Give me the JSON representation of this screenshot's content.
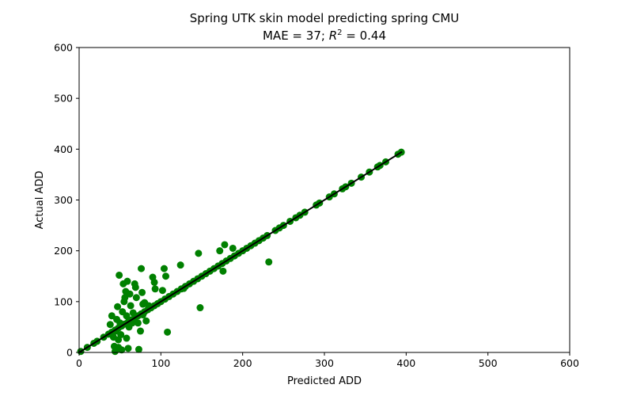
{
  "chart_data": {
    "type": "scatter",
    "title_line1": "Spring UTK skin model predicting spring CMU",
    "title_line2_prefix": "MAE = 37; ",
    "title_line2_r": "R",
    "title_line2_sup": "2",
    "title_line2_suffix": " = 0.44",
    "xlabel": "Predicted ADD",
    "ylabel": "Actual ADD",
    "xlim": [
      0,
      600
    ],
    "ylim": [
      0,
      600
    ],
    "xticks": [
      0,
      100,
      200,
      300,
      400,
      500,
      600
    ],
    "yticks": [
      0,
      100,
      200,
      300,
      400,
      500,
      600
    ],
    "grid": false,
    "marker_color": "#008000",
    "line_color": "#000000",
    "reference_line": {
      "x": [
        0,
        395
      ],
      "y": [
        0,
        395
      ]
    },
    "points": [
      {
        "x": 2,
        "y": 2
      },
      {
        "x": 10,
        "y": 10
      },
      {
        "x": 18,
        "y": 18
      },
      {
        "x": 22,
        "y": 22
      },
      {
        "x": 30,
        "y": 30
      },
      {
        "x": 36,
        "y": 36
      },
      {
        "x": 40,
        "y": 40
      },
      {
        "x": 44,
        "y": 44
      },
      {
        "x": 48,
        "y": 48
      },
      {
        "x": 52,
        "y": 52
      },
      {
        "x": 56,
        "y": 56
      },
      {
        "x": 60,
        "y": 60
      },
      {
        "x": 64,
        "y": 64
      },
      {
        "x": 68,
        "y": 68
      },
      {
        "x": 72,
        "y": 72
      },
      {
        "x": 76,
        "y": 76
      },
      {
        "x": 80,
        "y": 80
      },
      {
        "x": 84,
        "y": 84
      },
      {
        "x": 88,
        "y": 88
      },
      {
        "x": 92,
        "y": 92
      },
      {
        "x": 96,
        "y": 96
      },
      {
        "x": 100,
        "y": 100
      },
      {
        "x": 105,
        "y": 105
      },
      {
        "x": 110,
        "y": 110
      },
      {
        "x": 115,
        "y": 115
      },
      {
        "x": 120,
        "y": 120
      },
      {
        "x": 125,
        "y": 125
      },
      {
        "x": 130,
        "y": 130
      },
      {
        "x": 135,
        "y": 135
      },
      {
        "x": 140,
        "y": 140
      },
      {
        "x": 145,
        "y": 145
      },
      {
        "x": 150,
        "y": 150
      },
      {
        "x": 155,
        "y": 155
      },
      {
        "x": 160,
        "y": 160
      },
      {
        "x": 165,
        "y": 165
      },
      {
        "x": 170,
        "y": 170
      },
      {
        "x": 175,
        "y": 175
      },
      {
        "x": 180,
        "y": 180
      },
      {
        "x": 185,
        "y": 185
      },
      {
        "x": 190,
        "y": 190
      },
      {
        "x": 195,
        "y": 195
      },
      {
        "x": 200,
        "y": 200
      },
      {
        "x": 205,
        "y": 205
      },
      {
        "x": 210,
        "y": 210
      },
      {
        "x": 215,
        "y": 215
      },
      {
        "x": 220,
        "y": 220
      },
      {
        "x": 225,
        "y": 225
      },
      {
        "x": 230,
        "y": 230
      },
      {
        "x": 240,
        "y": 240
      },
      {
        "x": 245,
        "y": 245
      },
      {
        "x": 250,
        "y": 250
      },
      {
        "x": 258,
        "y": 258
      },
      {
        "x": 265,
        "y": 265
      },
      {
        "x": 270,
        "y": 270
      },
      {
        "x": 276,
        "y": 276
      },
      {
        "x": 290,
        "y": 290
      },
      {
        "x": 294,
        "y": 294
      },
      {
        "x": 306,
        "y": 306
      },
      {
        "x": 312,
        "y": 312
      },
      {
        "x": 322,
        "y": 322
      },
      {
        "x": 326,
        "y": 326
      },
      {
        "x": 333,
        "y": 333
      },
      {
        "x": 345,
        "y": 345
      },
      {
        "x": 355,
        "y": 355
      },
      {
        "x": 365,
        "y": 365
      },
      {
        "x": 368,
        "y": 368
      },
      {
        "x": 375,
        "y": 375
      },
      {
        "x": 390,
        "y": 390
      },
      {
        "x": 394,
        "y": 394
      },
      {
        "x": 38,
        "y": 55
      },
      {
        "x": 40,
        "y": 72
      },
      {
        "x": 42,
        "y": 30
      },
      {
        "x": 43,
        "y": 12
      },
      {
        "x": 44,
        "y": 2
      },
      {
        "x": 45,
        "y": 42
      },
      {
        "x": 46,
        "y": 65
      },
      {
        "x": 47,
        "y": 90
      },
      {
        "x": 48,
        "y": 25
      },
      {
        "x": 48,
        "y": 10
      },
      {
        "x": 49,
        "y": 152
      },
      {
        "x": 50,
        "y": 58
      },
      {
        "x": 51,
        "y": 35
      },
      {
        "x": 52,
        "y": 5
      },
      {
        "x": 53,
        "y": 80
      },
      {
        "x": 54,
        "y": 135
      },
      {
        "x": 55,
        "y": 100
      },
      {
        "x": 56,
        "y": 108
      },
      {
        "x": 57,
        "y": 120
      },
      {
        "x": 58,
        "y": 28
      },
      {
        "x": 58,
        "y": 72
      },
      {
        "x": 59,
        "y": 140
      },
      {
        "x": 60,
        "y": 8
      },
      {
        "x": 61,
        "y": 50
      },
      {
        "x": 62,
        "y": 115
      },
      {
        "x": 63,
        "y": 92
      },
      {
        "x": 64,
        "y": 62
      },
      {
        "x": 66,
        "y": 78
      },
      {
        "x": 68,
        "y": 135
      },
      {
        "x": 69,
        "y": 128
      },
      {
        "x": 70,
        "y": 108
      },
      {
        "x": 72,
        "y": 58
      },
      {
        "x": 73,
        "y": 6
      },
      {
        "x": 75,
        "y": 42
      },
      {
        "x": 76,
        "y": 165
      },
      {
        "x": 77,
        "y": 118
      },
      {
        "x": 78,
        "y": 95
      },
      {
        "x": 80,
        "y": 98
      },
      {
        "x": 82,
        "y": 62
      },
      {
        "x": 85,
        "y": 92
      },
      {
        "x": 88,
        "y": 88
      },
      {
        "x": 90,
        "y": 148
      },
      {
        "x": 92,
        "y": 138
      },
      {
        "x": 93,
        "y": 125
      },
      {
        "x": 102,
        "y": 122
      },
      {
        "x": 104,
        "y": 165
      },
      {
        "x": 106,
        "y": 150
      },
      {
        "x": 108,
        "y": 40
      },
      {
        "x": 124,
        "y": 172
      },
      {
        "x": 128,
        "y": 126
      },
      {
        "x": 146,
        "y": 195
      },
      {
        "x": 148,
        "y": 88
      },
      {
        "x": 172,
        "y": 200
      },
      {
        "x": 176,
        "y": 160
      },
      {
        "x": 178,
        "y": 212
      },
      {
        "x": 188,
        "y": 205
      },
      {
        "x": 232,
        "y": 178
      },
      {
        "x": 78,
        "y": 74
      },
      {
        "x": 65,
        "y": 58
      }
    ]
  }
}
